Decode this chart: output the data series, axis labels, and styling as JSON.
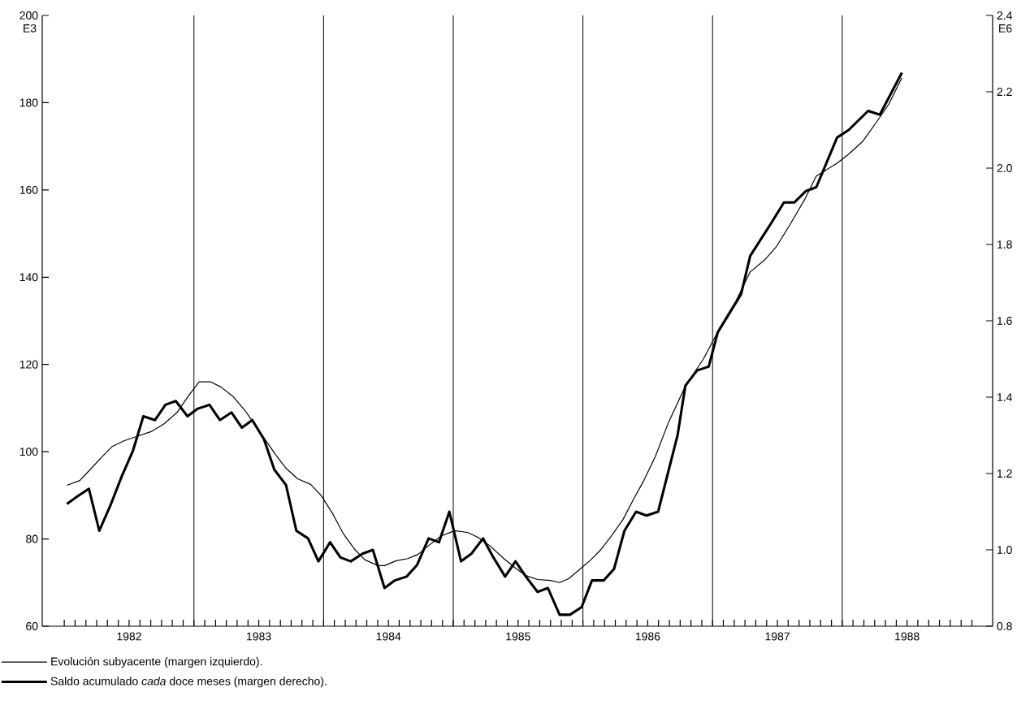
{
  "chart_data": {
    "type": "line",
    "ylabel": "E3",
    "y2label": "E6",
    "xlim": [
      1981.83,
      1989.16
    ],
    "ylim": [
      60,
      200
    ],
    "y2lim": [
      0.8,
      2.4
    ],
    "yticks": [
      60,
      80,
      100,
      120,
      140,
      160,
      180,
      200
    ],
    "y2ticks": [
      0.8,
      {
        "value": 1.0,
        "label": "1.0"
      },
      1.2,
      1.4,
      1.6,
      1.8,
      {
        "value": 2.0,
        "label": "2.0"
      },
      2.2,
      2.4
    ],
    "xticks": [
      {
        "value": 1982.0,
        "label": null
      },
      {
        "value": 1982.083,
        "label": null
      },
      {
        "value": 1982.167,
        "label": null
      },
      {
        "value": 1982.25,
        "label": null
      },
      {
        "value": 1982.333,
        "label": null
      },
      {
        "value": 1982.417,
        "label": null
      },
      {
        "value": 1982.5,
        "label": "1982"
      },
      {
        "value": 1982.583,
        "label": null
      },
      {
        "value": 1982.667,
        "label": null
      },
      {
        "value": 1982.75,
        "label": null
      },
      {
        "value": 1982.833,
        "label": null
      },
      {
        "value": 1982.917,
        "label": null
      },
      {
        "value": 1983.0,
        "label": null
      },
      {
        "value": 1983.083,
        "label": null
      },
      {
        "value": 1983.167,
        "label": null
      },
      {
        "value": 1983.25,
        "label": null
      },
      {
        "value": 1983.333,
        "label": null
      },
      {
        "value": 1983.417,
        "label": null
      },
      {
        "value": 1983.5,
        "label": "1983"
      },
      {
        "value": 1983.583,
        "label": null
      },
      {
        "value": 1983.667,
        "label": null
      },
      {
        "value": 1983.75,
        "label": null
      },
      {
        "value": 1983.833,
        "label": null
      },
      {
        "value": 1983.917,
        "label": null
      },
      {
        "value": 1984.0,
        "label": null
      },
      {
        "value": 1984.083,
        "label": null
      },
      {
        "value": 1984.167,
        "label": null
      },
      {
        "value": 1984.25,
        "label": null
      },
      {
        "value": 1984.333,
        "label": null
      },
      {
        "value": 1984.417,
        "label": null
      },
      {
        "value": 1984.5,
        "label": "1984"
      },
      {
        "value": 1984.583,
        "label": null
      },
      {
        "value": 1984.667,
        "label": null
      },
      {
        "value": 1984.75,
        "label": null
      },
      {
        "value": 1984.833,
        "label": null
      },
      {
        "value": 1984.917,
        "label": null
      },
      {
        "value": 1985.0,
        "label": null
      },
      {
        "value": 1985.083,
        "label": null
      },
      {
        "value": 1985.167,
        "label": null
      },
      {
        "value": 1985.25,
        "label": null
      },
      {
        "value": 1985.333,
        "label": null
      },
      {
        "value": 1985.417,
        "label": null
      },
      {
        "value": 1985.5,
        "label": "1985"
      },
      {
        "value": 1985.583,
        "label": null
      },
      {
        "value": 1985.667,
        "label": null
      },
      {
        "value": 1985.75,
        "label": null
      },
      {
        "value": 1985.833,
        "label": null
      },
      {
        "value": 1985.917,
        "label": null
      },
      {
        "value": 1986.0,
        "label": null
      },
      {
        "value": 1986.083,
        "label": null
      },
      {
        "value": 1986.167,
        "label": null
      },
      {
        "value": 1986.25,
        "label": null
      },
      {
        "value": 1986.333,
        "label": null
      },
      {
        "value": 1986.417,
        "label": null
      },
      {
        "value": 1986.5,
        "label": "1986"
      },
      {
        "value": 1986.583,
        "label": null
      },
      {
        "value": 1986.667,
        "label": null
      },
      {
        "value": 1986.75,
        "label": null
      },
      {
        "value": 1986.833,
        "label": null
      },
      {
        "value": 1986.917,
        "label": null
      },
      {
        "value": 1987.0,
        "label": null
      },
      {
        "value": 1987.083,
        "label": null
      },
      {
        "value": 1987.167,
        "label": null
      },
      {
        "value": 1987.25,
        "label": null
      },
      {
        "value": 1987.333,
        "label": null
      },
      {
        "value": 1987.417,
        "label": null
      },
      {
        "value": 1987.5,
        "label": "1987"
      },
      {
        "value": 1987.583,
        "label": null
      },
      {
        "value": 1987.667,
        "label": null
      },
      {
        "value": 1987.75,
        "label": null
      },
      {
        "value": 1987.833,
        "label": null
      },
      {
        "value": 1987.917,
        "label": null
      },
      {
        "value": 1988.0,
        "label": null
      },
      {
        "value": 1988.083,
        "label": null
      },
      {
        "value": 1988.167,
        "label": null
      },
      {
        "value": 1988.25,
        "label": null
      },
      {
        "value": 1988.333,
        "label": null
      },
      {
        "value": 1988.417,
        "label": null
      },
      {
        "value": 1988.5,
        "label": "1988"
      },
      {
        "value": 1988.583,
        "label": null
      },
      {
        "value": 1988.667,
        "label": null
      },
      {
        "value": 1988.75,
        "label": null
      },
      {
        "value": 1988.833,
        "label": null
      },
      {
        "value": 1988.917,
        "label": null
      },
      {
        "value": 1989.0,
        "label": null
      }
    ],
    "ref_lines": [
      {
        "axis": "x",
        "value": 1983
      },
      {
        "axis": "x",
        "value": 1984
      },
      {
        "axis": "x",
        "value": 1985
      },
      {
        "axis": "x",
        "value": 1986
      },
      {
        "axis": "x",
        "value": 1987
      },
      {
        "axis": "x",
        "value": 1988
      }
    ],
    "legend": "bottom",
    "marker": "none",
    "line_style": "solid",
    "series": [
      {
        "name": "Evolución subyacente (margen izquierdo).",
        "color": "#000000",
        "axis": "y",
        "x": [
          1982.02,
          1982.12,
          1982.19,
          1982.29,
          1982.37,
          1982.46,
          1982.57,
          1982.67,
          1982.77,
          1982.87,
          1982.96,
          1983.04,
          1983.13,
          1983.21,
          1983.3,
          1983.4,
          1983.53,
          1983.63,
          1983.71,
          1983.8,
          1983.9,
          1983.98,
          1984.07,
          1984.15,
          1984.24,
          1984.32,
          1984.42,
          1984.47,
          1984.56,
          1984.65,
          1984.73,
          1984.81,
          1984.91,
          1985.01,
          1985.11,
          1985.19,
          1985.28,
          1985.39,
          1985.48,
          1985.56,
          1985.65,
          1985.75,
          1985.82,
          1985.89,
          1985.97,
          1986.06,
          1986.14,
          1986.22,
          1986.31,
          1986.39,
          1986.47,
          1986.56,
          1986.66,
          1986.79,
          1986.93,
          1987.06,
          1987.18,
          1987.29,
          1987.4,
          1987.49,
          1987.6,
          1987.71,
          1987.8,
          1987.96,
          1988.05,
          1988.16,
          1988.27,
          1988.36,
          1988.46
        ],
        "values": [
          92.3,
          93.4,
          95.6,
          98.8,
          101.2,
          102.5,
          103.6,
          104.6,
          106.4,
          109.0,
          112.9,
          116.0,
          116.0,
          114.8,
          112.7,
          109.2,
          103.6,
          99.3,
          96.2,
          93.8,
          92.5,
          90.0,
          85.8,
          81.3,
          77.6,
          75.2,
          73.9,
          73.9,
          75.0,
          75.5,
          76.5,
          78.5,
          80.7,
          81.9,
          81.5,
          80.4,
          78.5,
          75.5,
          73.3,
          71.6,
          70.7,
          70.5,
          70.0,
          70.9,
          72.9,
          75.2,
          77.6,
          80.7,
          84.5,
          89.1,
          93.4,
          99.0,
          106.7,
          115.0,
          121.3,
          128.6,
          134.5,
          141.2,
          143.9,
          146.9,
          152.2,
          157.8,
          163.2,
          166.1,
          168.2,
          171.2,
          175.8,
          179.7,
          185.7
        ]
      },
      {
        "name": "Saldo acumulado *cada* doce meses (margen derecho).",
        "color": "#000000",
        "axis": "y2",
        "x": [
          1982.02,
          1982.1,
          1982.19,
          1982.27,
          1982.36,
          1982.44,
          1982.53,
          1982.61,
          1982.7,
          1982.78,
          1982.86,
          1982.95,
          1983.03,
          1983.12,
          1983.2,
          1983.29,
          1983.37,
          1983.45,
          1983.54,
          1983.62,
          1983.71,
          1983.79,
          1983.88,
          1983.96,
          1984.05,
          1984.13,
          1984.21,
          1984.3,
          1984.38,
          1984.47,
          1984.55,
          1984.64,
          1984.72,
          1984.81,
          1984.89,
          1984.97,
          1985.06,
          1985.14,
          1985.23,
          1985.31,
          1985.4,
          1985.48,
          1985.56,
          1985.65,
          1985.73,
          1985.82,
          1985.9,
          1985.99,
          1986.07,
          1986.16,
          1986.24,
          1986.32,
          1986.41,
          1986.49,
          1986.58,
          1986.73,
          1986.79,
          1986.88,
          1986.97,
          1987.04,
          1987.22,
          1987.29,
          1987.46,
          1987.55,
          1987.63,
          1987.72,
          1987.8,
          1987.96,
          1988.05,
          1988.2,
          1988.29,
          1988.46
        ],
        "values": [
          1.12,
          1.14,
          1.16,
          1.05,
          1.12,
          1.19,
          1.26,
          1.35,
          1.34,
          1.38,
          1.39,
          1.35,
          1.37,
          1.38,
          1.34,
          1.36,
          1.32,
          1.34,
          1.29,
          1.21,
          1.17,
          1.05,
          1.03,
          0.97,
          1.02,
          0.98,
          0.97,
          0.99,
          1.0,
          0.9,
          0.92,
          0.93,
          0.96,
          1.03,
          1.02,
          1.1,
          0.97,
          0.99,
          1.03,
          0.98,
          0.93,
          0.97,
          0.93,
          0.89,
          0.9,
          0.83,
          0.83,
          0.85,
          0.92,
          0.92,
          0.95,
          1.05,
          1.1,
          1.09,
          1.1,
          1.3,
          1.43,
          1.47,
          1.48,
          1.57,
          1.67,
          1.77,
          1.86,
          1.91,
          1.91,
          1.94,
          1.95,
          2.08,
          2.1,
          2.15,
          2.14,
          2.25
        ]
      }
    ]
  }
}
